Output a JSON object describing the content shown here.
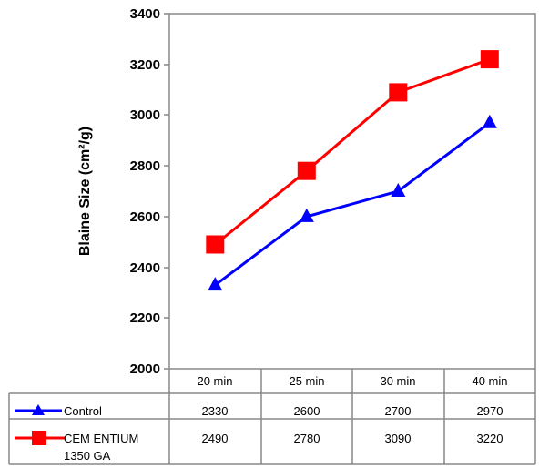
{
  "chart_data": {
    "type": "line",
    "ylabel": "Blaine Size (cm²/g)",
    "ylim": [
      2000,
      3400
    ],
    "yticks": [
      "2000",
      "2200",
      "2400",
      "2600",
      "2800",
      "3000",
      "3200",
      "3400"
    ],
    "categories": [
      "20 min",
      "25 min",
      "30 min",
      "40 min"
    ],
    "grid": false,
    "legend": "data-table",
    "series": [
      {
        "name": "Control",
        "values": [
          2330,
          2600,
          2700,
          2970
        ],
        "color": "#0000ff",
        "marker": "triangle"
      },
      {
        "name": "CEMENTIUM 1350 GA",
        "values": [
          2490,
          2780,
          3090,
          3220
        ],
        "color": "#ff0000",
        "marker": "square"
      }
    ],
    "table": {
      "rows": [
        {
          "label": "Control",
          "cells": [
            "2330",
            "2600",
            "2700",
            "2970"
          ]
        },
        {
          "label_line1": "CEM ENTIUM",
          "label_line2": "1350 GA",
          "cells": [
            "2490",
            "2780",
            "3090",
            "3220"
          ]
        }
      ]
    }
  }
}
